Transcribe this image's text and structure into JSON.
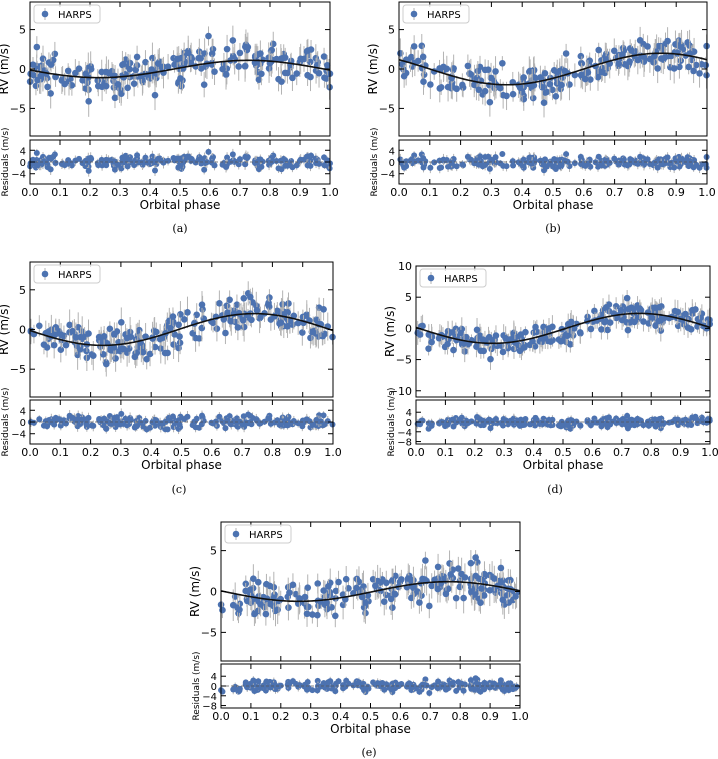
{
  "chart_data": [
    {
      "id": "a",
      "caption": "(a)",
      "type": "scatter",
      "xlabel": "Orbital phase",
      "ylabel": "RV (m/s)",
      "res_ylabel": "Residuals (m/s)",
      "legend": "HARPS",
      "legend_loc": "upper-left",
      "xlim": [
        0,
        1
      ],
      "ylim": [
        -8.5,
        8.5
      ],
      "res_ylim": [
        -7.5,
        7.5
      ],
      "xticks": [
        "0.0",
        "0.1",
        "0.2",
        "0.3",
        "0.4",
        "0.5",
        "0.6",
        "0.7",
        "0.8",
        "0.9",
        "1.0"
      ],
      "yticks": [
        {
          "v": 5,
          "label": "5"
        },
        {
          "v": 0,
          "label": "0"
        },
        {
          "v": -5,
          "label": "−5"
        }
      ],
      "res_yticks": [
        {
          "v": 4,
          "label": "4"
        },
        {
          "v": 0,
          "label": "0"
        },
        {
          "v": -4,
          "label": "−4"
        }
      ],
      "model": {
        "K": 1.1,
        "peak_phase": 0.73
      },
      "scatter_sd": 2.0,
      "n_points": 230,
      "seed": 11
    },
    {
      "id": "b",
      "caption": "(b)",
      "type": "scatter",
      "xlabel": "Orbital phase",
      "ylabel": "RV (m/s)",
      "res_ylabel": "Residuals (m/s)",
      "legend": "HARPS",
      "legend_loc": "upper-left",
      "xlim": [
        0,
        1
      ],
      "ylim": [
        -8.5,
        8.5
      ],
      "res_ylim": [
        -7.5,
        7.5
      ],
      "xticks": [
        "0.0",
        "0.1",
        "0.2",
        "0.3",
        "0.4",
        "0.5",
        "0.6",
        "0.7",
        "0.8",
        "0.9",
        "1.0"
      ],
      "yticks": [
        {
          "v": 5,
          "label": "5"
        },
        {
          "v": 0,
          "label": "0"
        },
        {
          "v": -5,
          "label": "−5"
        }
      ],
      "res_yticks": [
        {
          "v": 4,
          "label": "4"
        },
        {
          "v": 0,
          "label": "0"
        },
        {
          "v": -4,
          "label": "−4"
        }
      ],
      "model": {
        "K": 2.0,
        "peak_phase": 0.85
      },
      "scatter_sd": 1.9,
      "n_points": 230,
      "seed": 23
    },
    {
      "id": "c",
      "caption": "(c)",
      "type": "scatter",
      "xlabel": "Orbital phase",
      "ylabel": "RV (m/s)",
      "res_ylabel": "Residuals (m/s)",
      "legend": "HARPS",
      "legend_loc": "upper-left",
      "xlim": [
        0,
        1
      ],
      "ylim": [
        -8.5,
        8.5
      ],
      "res_ylim": [
        -7.5,
        7.5
      ],
      "xticks": [
        "0.0",
        "0.1",
        "0.2",
        "0.3",
        "0.4",
        "0.5",
        "0.6",
        "0.7",
        "0.8",
        "0.9",
        "1.0"
      ],
      "yticks": [
        {
          "v": 5,
          "label": "5"
        },
        {
          "v": 0,
          "label": "0"
        },
        {
          "v": -5,
          "label": "−5"
        }
      ],
      "res_yticks": [
        {
          "v": 4,
          "label": "4"
        },
        {
          "v": 0,
          "label": "0"
        },
        {
          "v": -4,
          "label": "−4"
        }
      ],
      "model": {
        "K": 2.0,
        "peak_phase": 0.74
      },
      "scatter_sd": 1.9,
      "n_points": 230,
      "seed": 37
    },
    {
      "id": "d",
      "caption": "(d)",
      "type": "scatter",
      "xlabel": "Orbital phase",
      "ylabel": "RV (m/s)",
      "res_ylabel": "Residuals (m/s)",
      "legend": "HARPS",
      "legend_loc": "upper-left",
      "xlim": [
        0,
        1
      ],
      "ylim": [
        -11,
        10
      ],
      "res_ylim": [
        -9,
        9
      ],
      "xticks": [
        "0.0",
        "0.1",
        "0.2",
        "0.3",
        "0.4",
        "0.5",
        "0.6",
        "0.7",
        "0.8",
        "0.9",
        "1.0"
      ],
      "yticks": [
        {
          "v": 10,
          "label": "10"
        },
        {
          "v": 5,
          "label": "5"
        },
        {
          "v": 0,
          "label": "0"
        },
        {
          "v": -5,
          "label": "−5"
        },
        {
          "v": -10,
          "label": "−10"
        }
      ],
      "res_yticks": [
        {
          "v": 4,
          "label": "4"
        },
        {
          "v": 0,
          "label": "0"
        },
        {
          "v": -4,
          "label": "−4"
        },
        {
          "v": -8,
          "label": "−8"
        }
      ],
      "model": {
        "K": 2.4,
        "peak_phase": 0.76
      },
      "scatter_sd": 1.9,
      "n_points": 230,
      "seed": 53
    },
    {
      "id": "e",
      "caption": "(e)",
      "type": "scatter",
      "xlabel": "Orbital phase",
      "ylabel": "RV (m/s)",
      "res_ylabel": "Residuals (m/s)",
      "legend": "HARPS",
      "legend_loc": "upper-left",
      "xlim": [
        0,
        1
      ],
      "ylim": [
        -8.5,
        8.5
      ],
      "res_ylim": [
        -9,
        9
      ],
      "xticks": [
        "0.0",
        "0.1",
        "0.2",
        "0.3",
        "0.4",
        "0.5",
        "0.6",
        "0.7",
        "0.8",
        "0.9",
        "1.0"
      ],
      "yticks": [
        {
          "v": 5,
          "label": "5"
        },
        {
          "v": 0,
          "label": "0"
        },
        {
          "v": -5,
          "label": "−5"
        }
      ],
      "res_yticks": [
        {
          "v": 4,
          "label": "4"
        },
        {
          "v": 0,
          "label": "0"
        },
        {
          "v": -4,
          "label": "−4"
        },
        {
          "v": -8,
          "label": "−8"
        }
      ],
      "model": {
        "K": 1.2,
        "peak_phase": 0.76
      },
      "scatter_sd": 2.0,
      "n_points": 230,
      "seed": 71
    }
  ],
  "colors": {
    "marker": "#4c72b0",
    "errorbar": "#b3b3b3",
    "model": "#111111",
    "axes": "#000000"
  }
}
